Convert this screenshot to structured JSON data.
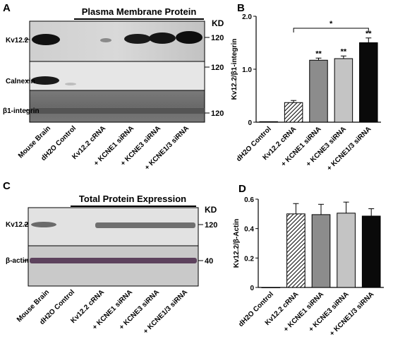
{
  "panels": {
    "a": {
      "letter": "A",
      "header": "Plasma Membrane Protein",
      "kd": "KD",
      "rows": [
        {
          "label": "Kv12.2",
          "marker": "120"
        },
        {
          "label": "Calnexin",
          "marker": "120"
        },
        {
          "label": "β1-integrin",
          "marker": "120"
        }
      ],
      "lanes": [
        "Mouse Brain",
        "dH2O Control",
        "Kv12.2 cRNA",
        "+ KCNE1 siRNA",
        "+ KCNE3 siRNA",
        "+ KCNE1/3 siRNA"
      ]
    },
    "b": {
      "letter": "B"
    },
    "c": {
      "letter": "C",
      "header": "Total Protein Expression",
      "kd": "KD",
      "rows": [
        {
          "label": "Kv12.2",
          "marker": "120"
        },
        {
          "label": "β-actin",
          "marker": "40"
        }
      ],
      "lanes": [
        "Mouse Brain",
        "dH2O Control",
        "Kv12.2 cRNA",
        "+ KCNE1 siRNA",
        "+ KCNE3 siRNA",
        "+ KCNE1/3 siRNA"
      ]
    },
    "d": {
      "letter": "D"
    }
  },
  "chart_data": [
    {
      "type": "bar",
      "categories": [
        "dH2O Control",
        "Kv12.2 cRNA",
        "+ KCNE1 siRNA",
        "+ KCNE3 siRNA",
        "+ KCNE1/3 siRNA"
      ],
      "values": [
        0.01,
        0.37,
        1.17,
        1.2,
        1.5
      ],
      "errors": [
        0,
        0.04,
        0.04,
        0.05,
        0.09
      ],
      "bar_colors": [
        "#ffffff",
        "hatch",
        "#8c8c8c",
        "#c4c4c4",
        "#0a0a0a"
      ],
      "bar_annotations": [
        "",
        "",
        "**",
        "**",
        "**"
      ],
      "bracket_annotation": "*",
      "ylabel": "Kv12.2/β1-integrin",
      "ylim": [
        0,
        2
      ],
      "yticks": [
        "0",
        "1.0",
        "2.0"
      ]
    },
    {
      "type": "bar",
      "categories": [
        "dH2O Control",
        "Kv12.2 cRNA",
        "+ KCNE1 siRNA",
        "+ KCNE3 siRNA",
        "+ KCNE1/3 siRNA"
      ],
      "values": [
        0.0,
        0.5,
        0.495,
        0.505,
        0.485
      ],
      "errors": [
        0,
        0.07,
        0.07,
        0.075,
        0.05
      ],
      "bar_colors": [
        "#ffffff",
        "hatch",
        "#8c8c8c",
        "#c4c4c4",
        "#0a0a0a"
      ],
      "ylabel": "Kv12.2/β-Actin",
      "ylim": [
        0,
        0.6
      ],
      "yticks": [
        "0",
        "0.2",
        "0.4",
        "0.6"
      ]
    }
  ]
}
